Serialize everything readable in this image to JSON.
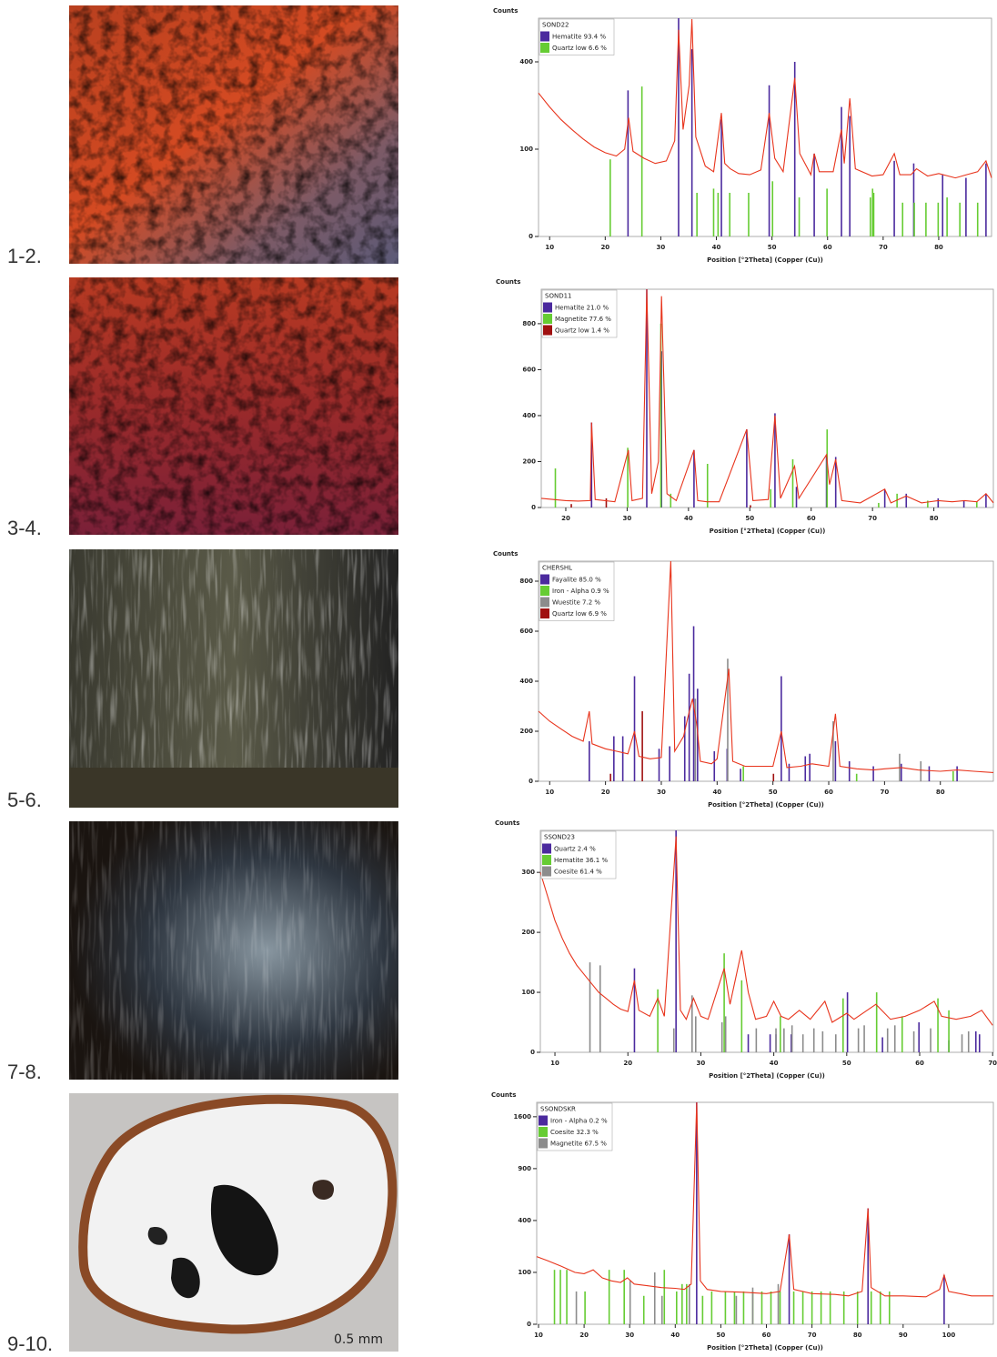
{
  "panel_labels": [
    "1-2.",
    "3-4.",
    "5-6.",
    "7-8.",
    "9-10."
  ],
  "scale_bar": "0.5 mm",
  "chart_data": [
    {
      "type": "line",
      "sample": "SOND22",
      "y_label": "Counts",
      "x_label": "Position [°2Theta] (Copper (Cu))",
      "yscale": "sqrt",
      "color": "#e8341c",
      "xlim": [
        8,
        89.5
      ],
      "ylim": [
        0,
        625
      ],
      "xticks": [
        10,
        20,
        30,
        40,
        50,
        60,
        70,
        80
      ],
      "yticks": [
        0,
        100,
        400
      ],
      "x": [
        8,
        10,
        12,
        14,
        16,
        18,
        20,
        22,
        23.5,
        24.2,
        25,
        27,
        29,
        31,
        32.5,
        33.2,
        34,
        35.1,
        35.6,
        36.3,
        38,
        39.5,
        40.9,
        41.5,
        42.5,
        44,
        46,
        48,
        49.5,
        50.5,
        52,
        54.1,
        55,
        57,
        57.6,
        58.5,
        61,
        62.5,
        63,
        64,
        65,
        68,
        70,
        72,
        73,
        75,
        76,
        78,
        80,
        83,
        85,
        87,
        88.5,
        89.5
      ],
      "values": [
        270,
        220,
        180,
        150,
        125,
        105,
        92,
        85,
        100,
        185,
        95,
        80,
        70,
        75,
        120,
        560,
        150,
        300,
        620,
        130,
        65,
        55,
        200,
        70,
        60,
        52,
        50,
        58,
        200,
        80,
        55,
        330,
        90,
        50,
        90,
        55,
        55,
        150,
        70,
        250,
        60,
        48,
        50,
        90,
        50,
        50,
        60,
        48,
        52,
        45,
        50,
        55,
        75,
        45
      ],
      "series": [
        {
          "name": "Hematite 93.4 %",
          "color": "#4b2a9e",
          "x": [
            24.1,
            33.2,
            35.6,
            40.9,
            49.5,
            54.1,
            57.6,
            62.5,
            64,
            72,
            75.5,
            80.7,
            84.9,
            88.5
          ],
          "values": [
            280,
            625,
            460,
            180,
            300,
            400,
            90,
            220,
            190,
            75,
            70,
            50,
            45,
            70
          ]
        },
        {
          "name": "Quartz low 6.6 %",
          "color": "#66cc33",
          "x": [
            20.9,
            26.6,
            36.5,
            39.5,
            40.3,
            42.4,
            45.8,
            50.1,
            54.9,
            59.9,
            67.7,
            68.1,
            68.3,
            73.5,
            75.6,
            77.7,
            79.9,
            81.5,
            83.8,
            87
          ],
          "values": [
            78,
            295,
            25,
            30,
            25,
            25,
            25,
            40,
            20,
            30,
            20,
            30,
            25,
            15,
            15,
            15,
            15,
            20,
            15,
            15
          ]
        }
      ]
    },
    {
      "type": "line",
      "sample": "SOND11",
      "y_label": "Counts",
      "x_label": "Position [°2Theta] (Copper (Cu))",
      "yscale": "linear",
      "color": "#e8341c",
      "xlim": [
        16,
        89.7
      ],
      "ylim": [
        0,
        950
      ],
      "xticks": [
        20,
        30,
        40,
        50,
        60,
        70,
        80
      ],
      "yticks": [
        0,
        200,
        400,
        600,
        800
      ],
      "x": [
        16,
        18,
        20,
        22,
        24,
        24.2,
        24.8,
        28,
        30.2,
        30.8,
        32.5,
        33.2,
        34,
        35.1,
        35.6,
        36.5,
        38,
        40.9,
        41.5,
        43,
        45,
        49.5,
        50.5,
        53,
        54.1,
        55,
        57.3,
        58,
        62.5,
        63,
        64,
        65,
        68,
        72,
        73,
        75.5,
        78,
        80.7,
        83,
        85,
        87,
        88.5,
        89.7
      ],
      "values": [
        40,
        35,
        30,
        28,
        30,
        370,
        35,
        25,
        250,
        30,
        40,
        950,
        60,
        200,
        920,
        60,
        30,
        250,
        30,
        25,
        25,
        340,
        30,
        35,
        400,
        40,
        180,
        40,
        230,
        100,
        210,
        30,
        20,
        80,
        20,
        50,
        20,
        30,
        25,
        30,
        25,
        60,
        20
      ],
      "series": [
        {
          "name": "Hematite 21.0 %",
          "color": "#4b2a9e",
          "x": [
            24.2,
            33.2,
            35.6,
            40.9,
            49.5,
            54.1,
            57.6,
            62.5,
            64,
            72,
            75.5,
            80.7,
            84.9,
            88.5
          ],
          "values": [
            370,
            950,
            680,
            250,
            340,
            410,
            90,
            230,
            220,
            80,
            60,
            40,
            30,
            60
          ]
        },
        {
          "name": "Magnetite 77.6 %",
          "color": "#66cc33",
          "x": [
            18.3,
            30.1,
            35.5,
            37.1,
            43.1,
            53.4,
            57,
            62.6,
            71,
            74,
            79,
            87
          ],
          "values": [
            170,
            260,
            800,
            60,
            190,
            80,
            210,
            340,
            20,
            60,
            30,
            25
          ]
        },
        {
          "name": "Quartz low 1.4 %",
          "color": "#a01010",
          "x": [
            20.9,
            26.6,
            50.1
          ],
          "values": [
            15,
            40,
            10
          ]
        }
      ]
    },
    {
      "type": "line",
      "sample": "CHERSHL",
      "y_label": "Counts",
      "x_label": "Position [°2Theta] (Copper (Cu))",
      "yscale": "linear",
      "color": "#e8341c",
      "xlim": [
        8,
        89.5
      ],
      "ylim": [
        0,
        880
      ],
      "xticks": [
        10,
        20,
        30,
        40,
        50,
        60,
        70,
        80
      ],
      "yticks": [
        0,
        200,
        400,
        600,
        800
      ],
      "x": [
        8,
        10,
        12,
        14,
        16,
        17.1,
        17.6,
        20,
        22,
        24,
        25.2,
        26,
        28,
        30,
        31.7,
        32.4,
        34,
        34.7,
        35.6,
        36.4,
        37,
        39,
        40,
        42.1,
        42.8,
        45,
        48,
        50,
        51.5,
        52.5,
        55,
        57,
        60,
        61.2,
        62,
        65,
        68,
        70,
        73,
        76,
        80,
        83,
        86,
        89.5
      ],
      "values": [
        280,
        240,
        210,
        180,
        160,
        280,
        150,
        130,
        120,
        110,
        200,
        100,
        90,
        95,
        880,
        120,
        180,
        250,
        330,
        220,
        80,
        70,
        90,
        450,
        80,
        60,
        60,
        60,
        200,
        55,
        60,
        70,
        60,
        270,
        60,
        50,
        45,
        50,
        55,
        45,
        40,
        45,
        40,
        35
      ],
      "series": [
        {
          "name": "Fayalite 85.0 %",
          "color": "#4b2a9e",
          "x": [
            17.1,
            21.5,
            23.1,
            25.2,
            29.6,
            31.5,
            34.2,
            35,
            35.8,
            36.5,
            39.5,
            41.8,
            44.2,
            51.5,
            52.9,
            55.8,
            56.6,
            61.2,
            63.7,
            68,
            73,
            78,
            83
          ],
          "values": [
            160,
            180,
            180,
            420,
            130,
            140,
            260,
            430,
            620,
            370,
            120,
            130,
            50,
            420,
            70,
            100,
            110,
            160,
            80,
            60,
            70,
            60,
            60
          ]
        },
        {
          "name": "Iron - Alpha 0.9 %",
          "color": "#66cc33",
          "x": [
            44.7,
            65,
            82.3
          ],
          "values": [
            60,
            30,
            40
          ]
        },
        {
          "name": "Wuestite 7.2 %",
          "color": "#8c8c8c",
          "x": [
            36.1,
            41.9,
            60.8,
            72.7,
            76.5
          ],
          "values": [
            330,
            490,
            240,
            110,
            80
          ]
        },
        {
          "name": "Quartz low 6.9 %",
          "color": "#a01010",
          "x": [
            20.9,
            26.6,
            50.1
          ],
          "values": [
            30,
            280,
            30
          ]
        }
      ]
    },
    {
      "type": "line",
      "sample": "SSOND23",
      "y_label": "Counts",
      "x_label": "Position [°2Theta] (Copper (Cu))",
      "yscale": "linear",
      "color": "#e8341c",
      "xlim": [
        8,
        70.1
      ],
      "ylim": [
        0,
        370
      ],
      "xticks": [
        10,
        20,
        30,
        40,
        50,
        60,
        70
      ],
      "yticks": [
        0,
        100,
        200,
        300
      ],
      "x": [
        8,
        9,
        10,
        11,
        12,
        13,
        14,
        15,
        16,
        17,
        18,
        19,
        20,
        20.9,
        21.5,
        23,
        24.1,
        25,
        26.6,
        27.2,
        28,
        29,
        30,
        31,
        33.2,
        34,
        35.6,
        36.5,
        37.5,
        39,
        40,
        41,
        42,
        43.5,
        45,
        47,
        48,
        50,
        51,
        54,
        56,
        58,
        60,
        62,
        63,
        65,
        67,
        68.5,
        70
      ],
      "values": [
        300,
        260,
        220,
        190,
        165,
        145,
        130,
        115,
        100,
        90,
        80,
        72,
        68,
        120,
        70,
        60,
        90,
        60,
        360,
        70,
        55,
        90,
        60,
        55,
        140,
        80,
        170,
        100,
        55,
        60,
        85,
        60,
        55,
        70,
        55,
        85,
        50,
        65,
        55,
        80,
        55,
        60,
        70,
        85,
        60,
        55,
        60,
        70,
        45
      ],
      "series": [
        {
          "name": "Quartz 2.4 %",
          "color": "#4b2a9e",
          "x": [
            20.9,
            26.6,
            36.5,
            39.5,
            40.3,
            42.4,
            50.1,
            54.9,
            59.9,
            64,
            67.7,
            68.2
          ],
          "values": [
            140,
            370,
            30,
            30,
            30,
            30,
            100,
            25,
            50,
            20,
            35,
            30
          ]
        },
        {
          "name": "Hematite 36.1 %",
          "color": "#66cc33",
          "x": [
            24.1,
            33.2,
            35.6,
            40.9,
            49.5,
            54.1,
            57.6,
            62.5,
            64
          ],
          "values": [
            105,
            165,
            120,
            60,
            90,
            100,
            60,
            90,
            70
          ]
        },
        {
          "name": "Coesite 61.4 %",
          "color": "#8c8c8c",
          "x": [
            14.8,
            16.2,
            26.3,
            28.8,
            29.3,
            32.9,
            33.4,
            37.6,
            40.3,
            41.4,
            42.5,
            44,
            45.5,
            46.7,
            48.5,
            51.6,
            52.4,
            55.6,
            56.6,
            59.2,
            61.5,
            65.8,
            66.7
          ],
          "values": [
            150,
            145,
            40,
            95,
            60,
            50,
            60,
            40,
            40,
            40,
            45,
            30,
            40,
            35,
            30,
            40,
            45,
            40,
            45,
            35,
            40,
            30,
            35
          ]
        }
      ]
    },
    {
      "type": "line",
      "sample": "SSONDSKR",
      "y_label": "Counts",
      "x_label": "Position [°2Theta] (Copper (Cu))",
      "yscale": "sqrt",
      "color": "#e8341c",
      "xlim": [
        9.6,
        109.8
      ],
      "ylim": [
        0,
        1830
      ],
      "xticks": [
        10,
        20,
        30,
        40,
        50,
        60,
        70,
        80,
        90,
        100
      ],
      "yticks": [
        0,
        100,
        400,
        900,
        1600
      ],
      "x": [
        9.6,
        12,
        15,
        18,
        20,
        22,
        24,
        26,
        28,
        29.5,
        31,
        34,
        37,
        40,
        42,
        43.5,
        44.7,
        45.5,
        47,
        50,
        55,
        60,
        63,
        65,
        66,
        70,
        75,
        78,
        81,
        82.3,
        83,
        86,
        90,
        95,
        98,
        99,
        100,
        105,
        109.8
      ],
      "values": [
        170,
        150,
        125,
        100,
        95,
        110,
        80,
        70,
        65,
        80,
        60,
        55,
        50,
        48,
        45,
        60,
        1830,
        70,
        45,
        40,
        38,
        35,
        40,
        300,
        45,
        35,
        33,
        30,
        40,
        500,
        50,
        30,
        30,
        28,
        45,
        90,
        40,
        30,
        30
      ],
      "series": [
        {
          "name": "Iron - Alpha 0.2 %",
          "color": "#4b2a9e",
          "x": [
            44.7,
            65,
            82.3,
            99
          ],
          "values": [
            1830,
            300,
            500,
            90
          ]
        },
        {
          "name": "Coesite 32.3 %",
          "color": "#66cc33",
          "x": [
            13.5,
            14.8,
            16.2,
            20.2,
            25.5,
            28.8,
            33.1,
            37.6,
            40.3,
            41.5,
            42.5,
            46,
            48,
            51,
            53,
            55,
            57,
            59,
            61,
            63,
            66,
            68,
            70,
            72,
            74,
            77,
            80,
            83,
            85,
            87
          ],
          "values": [
            110,
            110,
            110,
            40,
            110,
            110,
            30,
            110,
            40,
            60,
            60,
            30,
            40,
            40,
            40,
            40,
            40,
            40,
            40,
            40,
            40,
            40,
            40,
            40,
            40,
            40,
            40,
            40,
            40,
            40
          ]
        },
        {
          "name": "Magnetite 67.5 %",
          "color": "#8c8c8c",
          "x": [
            18.3,
            30.1,
            35.5,
            37.1,
            43.1,
            53.4,
            57,
            62.6
          ],
          "values": [
            40,
            70,
            100,
            30,
            60,
            30,
            50,
            60
          ]
        }
      ]
    }
  ]
}
